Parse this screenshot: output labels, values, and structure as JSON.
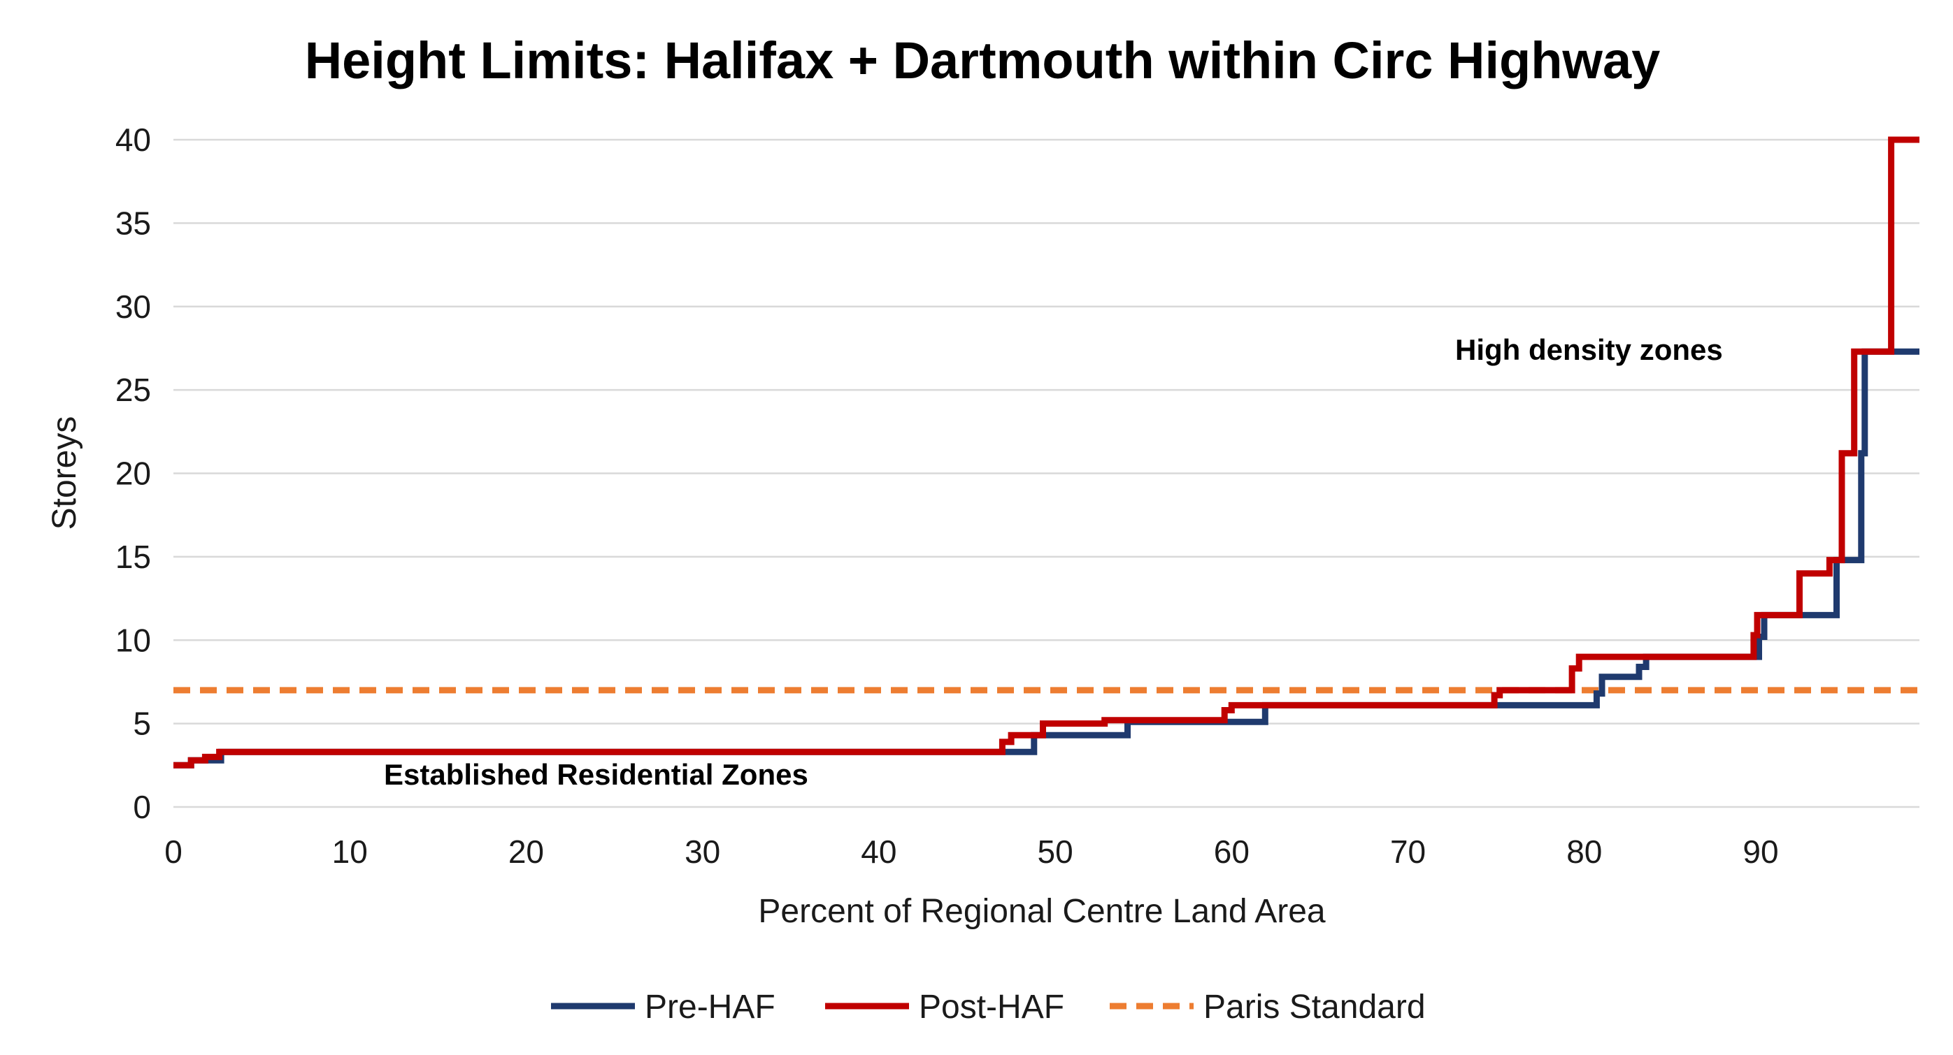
{
  "chart_data": {
    "type": "line",
    "title": "Height Limits: Halifax + Dartmouth within Circ Highway",
    "xlabel": "Percent of Regional Centre Land Area",
    "ylabel": "Storeys",
    "xlim": [
      0,
      99
    ],
    "ylim": [
      0,
      40
    ],
    "x_ticks": [
      0,
      10,
      20,
      30,
      40,
      50,
      60,
      70,
      80,
      90
    ],
    "y_ticks": [
      0,
      5,
      10,
      15,
      20,
      25,
      30,
      35,
      40
    ],
    "grid": "horizontal",
    "legend_position": "bottom",
    "annotations": [
      {
        "text": "High density zones",
        "x": 90,
        "y": 27
      },
      {
        "text": "Established Residential Zones",
        "x": 30,
        "y": 1.8
      }
    ],
    "series": [
      {
        "name": "Pre-HAF",
        "color": "#1f3a6e",
        "style": "step",
        "points": [
          [
            0,
            2.5
          ],
          [
            1,
            2.5
          ],
          [
            1,
            2.8
          ],
          [
            2.7,
            2.8
          ],
          [
            2.7,
            3.3
          ],
          [
            48.8,
            3.3
          ],
          [
            48.8,
            4.3
          ],
          [
            54.1,
            4.3
          ],
          [
            54.1,
            5.1
          ],
          [
            61.9,
            5.1
          ],
          [
            61.9,
            6.1
          ],
          [
            80.7,
            6.1
          ],
          [
            80.7,
            6.8
          ],
          [
            81,
            6.8
          ],
          [
            81,
            7.8
          ],
          [
            83.1,
            7.8
          ],
          [
            83.1,
            8.4
          ],
          [
            83.5,
            8.4
          ],
          [
            83.5,
            9
          ],
          [
            89.9,
            9
          ],
          [
            89.9,
            10.2
          ],
          [
            90.2,
            10.2
          ],
          [
            90.2,
            11.5
          ],
          [
            94.3,
            11.5
          ],
          [
            94.3,
            14.8
          ],
          [
            95.7,
            14.8
          ],
          [
            95.7,
            21.2
          ],
          [
            95.9,
            21.2
          ],
          [
            95.9,
            27.3
          ],
          [
            99,
            27.3
          ]
        ]
      },
      {
        "name": "Post-HAF",
        "color": "#c00000",
        "style": "step",
        "points": [
          [
            0,
            2.5
          ],
          [
            1,
            2.5
          ],
          [
            1,
            2.8
          ],
          [
            1.8,
            2.8
          ],
          [
            1.8,
            3
          ],
          [
            2.6,
            3
          ],
          [
            2.6,
            3.3
          ],
          [
            47,
            3.3
          ],
          [
            47,
            3.9
          ],
          [
            47.5,
            3.9
          ],
          [
            47.5,
            4.3
          ],
          [
            49.3,
            4.3
          ],
          [
            49.3,
            5
          ],
          [
            52.8,
            5
          ],
          [
            52.8,
            5.2
          ],
          [
            59.6,
            5.2
          ],
          [
            59.6,
            5.8
          ],
          [
            60,
            5.8
          ],
          [
            60,
            6.1
          ],
          [
            74.9,
            6.1
          ],
          [
            74.9,
            6.7
          ],
          [
            75.2,
            6.7
          ],
          [
            75.2,
            7
          ],
          [
            79.3,
            7
          ],
          [
            79.3,
            8.3
          ],
          [
            79.7,
            8.3
          ],
          [
            79.7,
            9
          ],
          [
            89.6,
            9
          ],
          [
            89.6,
            10.3
          ],
          [
            89.8,
            10.3
          ],
          [
            89.8,
            11.5
          ],
          [
            92.2,
            11.5
          ],
          [
            92.2,
            14
          ],
          [
            93.9,
            14
          ],
          [
            93.9,
            14.8
          ],
          [
            94.6,
            14.8
          ],
          [
            94.6,
            21.2
          ],
          [
            95.3,
            21.2
          ],
          [
            95.3,
            27.3
          ],
          [
            97.4,
            27.3
          ],
          [
            97.4,
            40
          ],
          [
            99,
            40
          ]
        ]
      },
      {
        "name": "Paris Standard",
        "color": "#ed7d31",
        "style": "dashed",
        "points": [
          [
            0,
            7
          ],
          [
            99,
            7
          ]
        ]
      }
    ]
  }
}
